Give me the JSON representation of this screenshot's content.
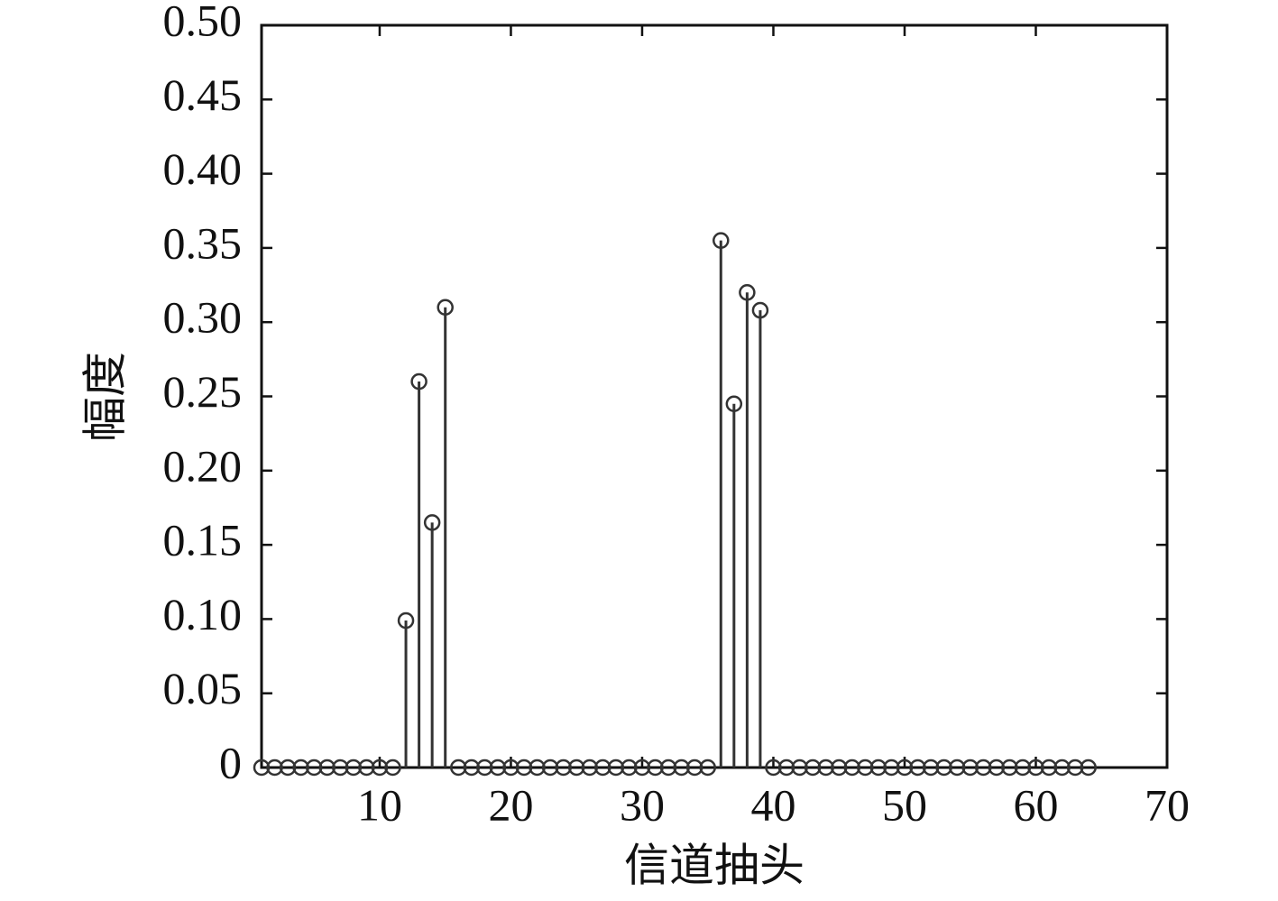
{
  "chart_data": {
    "type": "stem",
    "xlabel": "信道抽头",
    "ylabel": "幅度",
    "x": [
      1,
      2,
      3,
      4,
      5,
      6,
      7,
      8,
      9,
      10,
      11,
      12,
      13,
      14,
      15,
      16,
      17,
      18,
      19,
      20,
      21,
      22,
      23,
      24,
      25,
      26,
      27,
      28,
      29,
      30,
      31,
      32,
      33,
      34,
      35,
      36,
      37,
      38,
      39,
      40,
      41,
      42,
      43,
      44,
      45,
      46,
      47,
      48,
      49,
      50,
      51,
      52,
      53,
      54,
      55,
      56,
      57,
      58,
      59,
      60,
      61,
      62,
      63,
      64
    ],
    "values": [
      0,
      0,
      0,
      0,
      0,
      0,
      0,
      0,
      0,
      0,
      0,
      0.099,
      0.26,
      0.165,
      0.31,
      0,
      0,
      0,
      0,
      0,
      0,
      0,
      0,
      0,
      0,
      0,
      0,
      0,
      0,
      0,
      0,
      0,
      0,
      0,
      0,
      0.355,
      0.245,
      0.32,
      0.308,
      0,
      0,
      0,
      0,
      0,
      0,
      0,
      0,
      0,
      0,
      0,
      0,
      0,
      0,
      0,
      0,
      0,
      0,
      0,
      0,
      0,
      0,
      0,
      0,
      0
    ],
    "color": "#333333",
    "xlim": [
      1,
      70
    ],
    "xticks": [
      10,
      20,
      30,
      40,
      50,
      60,
      70
    ],
    "ylim": [
      0,
      0.5
    ],
    "yticks": [
      0,
      0.05,
      {
        "value": 0.1,
        "label": "0.10"
      },
      0.15,
      {
        "value": 0.2,
        "label": "0.20"
      },
      0.25,
      {
        "value": 0.3,
        "label": "0.30"
      },
      0.35,
      {
        "value": 0.4,
        "label": "0.40"
      },
      0.45,
      {
        "value": 0.5,
        "label": "0.50"
      }
    ]
  }
}
